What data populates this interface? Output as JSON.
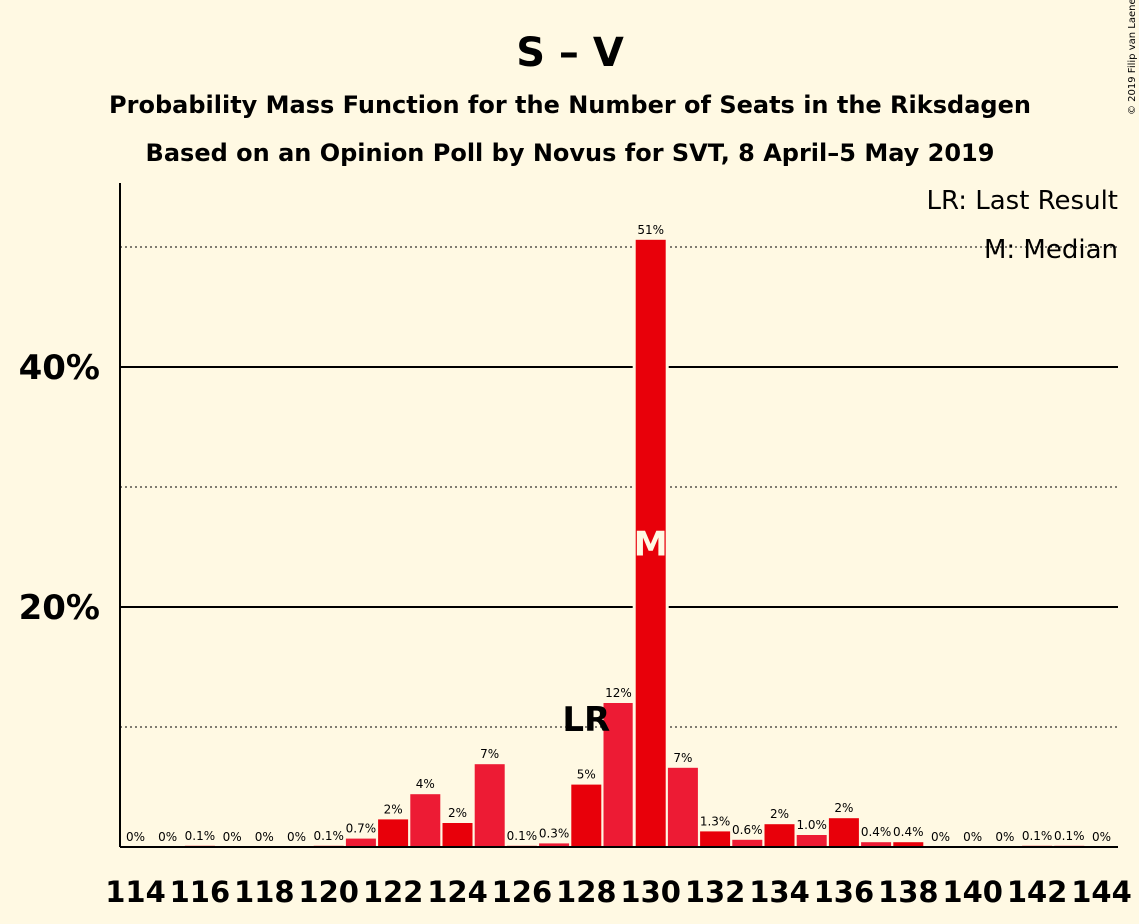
{
  "title": "S – V",
  "subtitle1": "Probability Mass Function for the Number of Seats in the Riksdagen",
  "subtitle2": "Based on an Opinion Poll by Novus for SVT, 8 April–5 May 2019",
  "credit": "© 2019 Filip van Laenen",
  "legend": {
    "lr": "LR: Last Result",
    "median": "M: Median"
  },
  "markers": {
    "lr_label": "LR",
    "lr_seat": 128,
    "median_label": "M",
    "median_seat": 130
  },
  "colors": {
    "bar_even": "#E8000A",
    "bar_odd": "#ED1B34",
    "background": "#FFF9E3",
    "axis": "#000000"
  },
  "chart_data": {
    "type": "bar",
    "title": "S – V",
    "xlabel": "",
    "ylabel": "",
    "ylim": [
      0,
      55
    ],
    "yticks": [
      {
        "value": 20,
        "label": "20%"
      },
      {
        "value": 40,
        "label": "40%"
      }
    ],
    "minor_gridlines": [
      10,
      30,
      50
    ],
    "xtick_labels": [
      "114",
      "116",
      "118",
      "120",
      "122",
      "124",
      "126",
      "128",
      "130",
      "132",
      "134",
      "136",
      "138",
      "140",
      "142",
      "144"
    ],
    "categories": [
      114,
      115,
      116,
      117,
      118,
      119,
      120,
      121,
      122,
      123,
      124,
      125,
      126,
      127,
      128,
      129,
      130,
      131,
      132,
      133,
      134,
      135,
      136,
      137,
      138,
      139,
      140,
      141,
      142,
      143,
      144
    ],
    "values": [
      0,
      0,
      0.1,
      0,
      0,
      0,
      0.1,
      0.7,
      2.3,
      4.4,
      2.0,
      6.9,
      0.1,
      0.3,
      5.2,
      12.0,
      50.6,
      6.6,
      1.3,
      0.6,
      1.9,
      1.0,
      2.4,
      0.4,
      0.4,
      0,
      0,
      0,
      0.1,
      0.1,
      0
    ],
    "labels": [
      "0%",
      "0%",
      "0.1%",
      "0%",
      "0%",
      "0%",
      "0.1%",
      "0.7%",
      "2%",
      "4%",
      "2%",
      "7%",
      "0.1%",
      "0.3%",
      "5%",
      "12%",
      "51%",
      "7%",
      "1.3%",
      "0.6%",
      "2%",
      "1.0%",
      "2%",
      "0.4%",
      "0.4%",
      "0%",
      "0%",
      "0%",
      "0.1%",
      "0.1%",
      "0%"
    ],
    "grid": true
  }
}
